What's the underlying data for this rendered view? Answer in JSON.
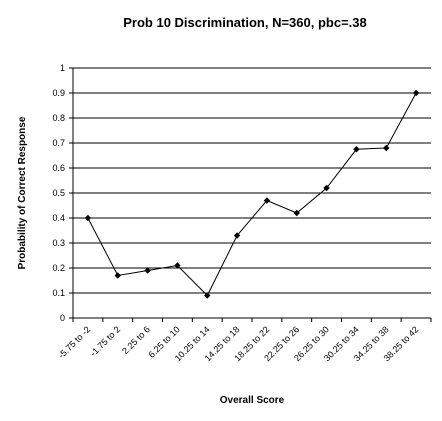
{
  "chart_data": {
    "type": "line",
    "title": "Prob 10 Discrimination, N=360, pbc=.38",
    "xlabel": "Overall Score",
    "ylabel": "Probability of Correct Response",
    "categories": [
      "-5.75 to -2",
      "-1.75 to 2",
      "2.25 to 6",
      "6.25 to 10",
      "10.25 to 14",
      "14.25 to 18",
      "18.25 to 22",
      "22.25 to 26",
      "26.25 to 30",
      "30.25 to 34",
      "34.25 to 38",
      "38.25 to 42"
    ],
    "values": [
      0.4,
      0.17,
      0.19,
      0.21,
      0.09,
      0.33,
      0.47,
      0.42,
      0.52,
      0.675,
      0.68,
      0.9
    ],
    "ylim": [
      0,
      1
    ],
    "yticks": [
      "0",
      "0.1",
      "0.2",
      "0.3",
      "0.4",
      "0.5",
      "0.6",
      "0.7",
      "0.8",
      "0.9",
      "1"
    ],
    "grid": true,
    "legend": "none",
    "colors": {
      "line": "#000000",
      "marker": "#000000",
      "grid": "#000000"
    }
  }
}
